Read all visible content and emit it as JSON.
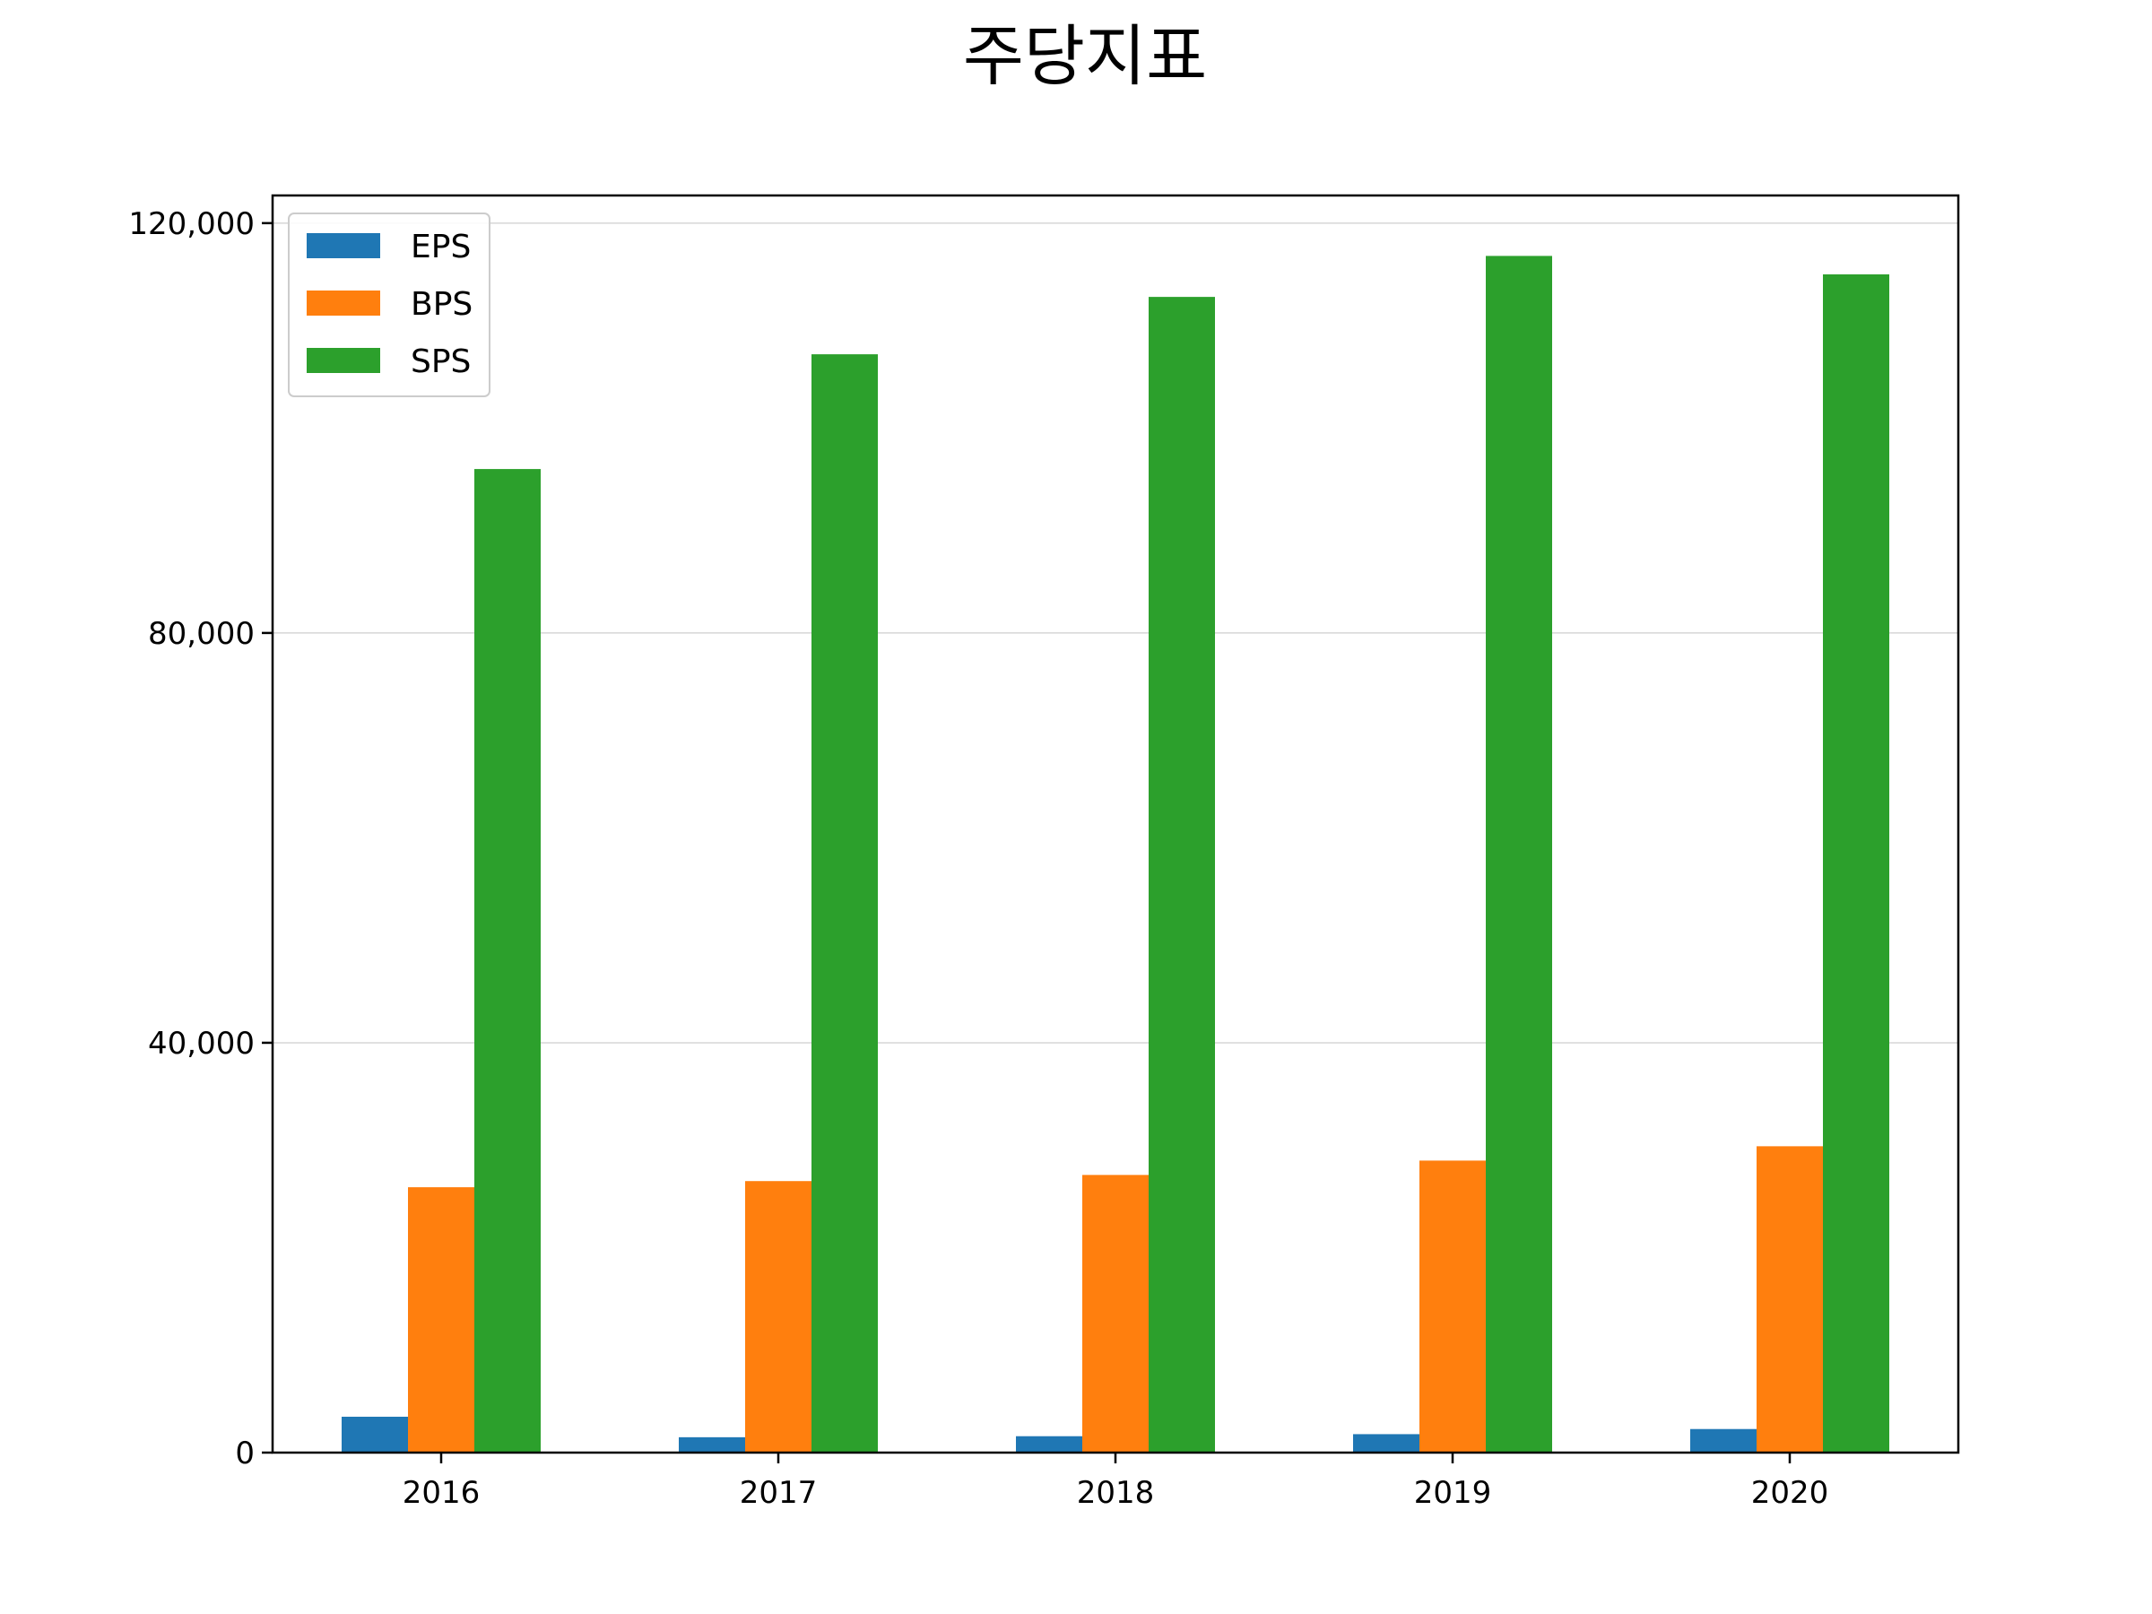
{
  "chart_data": {
    "type": "bar",
    "title": "주당지표",
    "xlabel": "",
    "ylabel": "",
    "categories": [
      "2016",
      "2017",
      "2018",
      "2019",
      "2020"
    ],
    "series": [
      {
        "name": "EPS",
        "color": "#1f77b4",
        "values": [
          3500,
          1500,
          1600,
          1800,
          2300
        ]
      },
      {
        "name": "BPS",
        "color": "#ff7f0e",
        "values": [
          25900,
          26500,
          27100,
          28500,
          29900
        ]
      },
      {
        "name": "SPS",
        "color": "#2ca02c",
        "values": [
          96000,
          107200,
          112800,
          116800,
          115000
        ]
      }
    ],
    "ylim": [
      0,
      122700
    ],
    "yticks": [
      0,
      40000,
      80000,
      120000
    ],
    "ytick_labels": [
      "0",
      "40,000",
      "80,000",
      "120,000"
    ],
    "grid": {
      "y": true,
      "x": false
    },
    "legend": {
      "position": "top-left",
      "entries": [
        "EPS",
        "BPS",
        "SPS"
      ]
    }
  }
}
